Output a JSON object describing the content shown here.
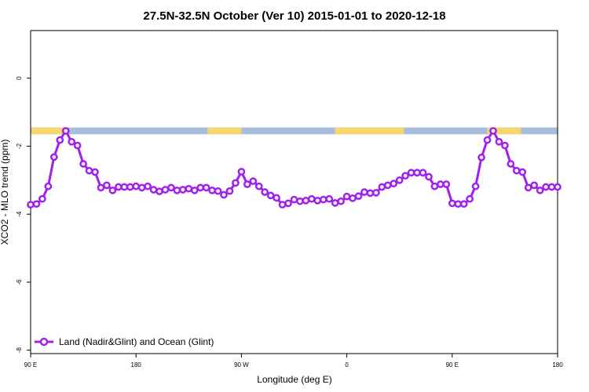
{
  "chart_data": {
    "type": "line",
    "title": "27.5N-32.5N October (Ver 10)   2015-01-01 to 2020-12-18",
    "xlabel": "Longitude (deg E)",
    "ylabel": "XCO2 - MLO trend (ppm)",
    "xlim": [
      90,
      450
    ],
    "ylim": [
      -8.1,
      1.4
    ],
    "x_ticks": [
      90,
      162,
      234,
      306,
      378,
      450
    ],
    "x_tick_labels": [
      "90 E",
      "180",
      "90 W",
      "0",
      "90 E",
      "180"
    ],
    "y_ticks": [
      0,
      -2,
      -4,
      -6,
      -8
    ],
    "y_tick_labels": [
      "0",
      "-2",
      "-4",
      "-6",
      "-8"
    ],
    "grid": false,
    "legend_position": "bottom-left",
    "colors": {
      "series": "#a020f0",
      "land": "#f5d76e",
      "ocean": "#a7bedd"
    },
    "land_ocean_band": {
      "y_top": -1.45,
      "y_bottom": -1.65,
      "land_segments": [
        [
          90,
          115
        ],
        [
          211,
          234
        ],
        [
          298,
          345
        ],
        [
          402,
          425
        ]
      ]
    },
    "series": [
      {
        "name": "Land (Nadir&Glint) and Ocean (Glint)",
        "x": [
          90,
          94,
          98,
          102,
          106,
          110,
          114,
          118,
          122,
          126,
          130,
          134,
          138,
          142,
          146,
          150,
          154,
          158,
          162,
          166,
          170,
          174,
          178,
          182,
          186,
          190,
          194,
          198,
          202,
          206,
          210,
          214,
          218,
          222,
          226,
          230,
          234,
          238,
          242,
          246,
          250,
          254,
          258,
          262,
          266,
          270,
          274,
          278,
          282,
          286,
          290,
          294,
          298,
          302,
          306,
          310,
          314,
          318,
          322,
          326,
          330,
          334,
          338,
          342,
          346,
          350,
          354,
          358,
          362,
          366,
          370,
          374,
          378,
          382,
          386,
          390,
          394,
          398,
          402,
          406,
          410,
          414,
          418,
          422,
          426,
          430,
          434,
          438,
          442,
          446,
          450
        ],
        "y": [
          -3.72,
          -3.7,
          -3.55,
          -3.18,
          -2.32,
          -1.82,
          -1.55,
          -1.87,
          -1.98,
          -2.52,
          -2.72,
          -2.76,
          -3.22,
          -3.15,
          -3.3,
          -3.2,
          -3.2,
          -3.2,
          -3.18,
          -3.22,
          -3.18,
          -3.28,
          -3.33,
          -3.28,
          -3.22,
          -3.3,
          -3.28,
          -3.25,
          -3.3,
          -3.22,
          -3.22,
          -3.3,
          -3.32,
          -3.43,
          -3.32,
          -3.08,
          -2.75,
          -3.12,
          -3.03,
          -3.18,
          -3.35,
          -3.45,
          -3.52,
          -3.72,
          -3.68,
          -3.57,
          -3.62,
          -3.6,
          -3.55,
          -3.6,
          -3.57,
          -3.55,
          -3.67,
          -3.62,
          -3.48,
          -3.53,
          -3.47,
          -3.35,
          -3.38,
          -3.37,
          -3.2,
          -3.15,
          -3.1,
          -3.0,
          -2.87,
          -2.78,
          -2.78,
          -2.78,
          -2.9,
          -3.18,
          -3.12,
          -3.12,
          -3.68,
          -3.7,
          -3.7,
          -3.55,
          -3.18,
          -2.33,
          -1.82,
          -1.55,
          -1.87,
          -1.98,
          -2.52,
          -2.72,
          -2.76,
          -3.22,
          -3.15,
          -3.3,
          -3.2,
          -3.2,
          -3.2
        ]
      }
    ]
  }
}
